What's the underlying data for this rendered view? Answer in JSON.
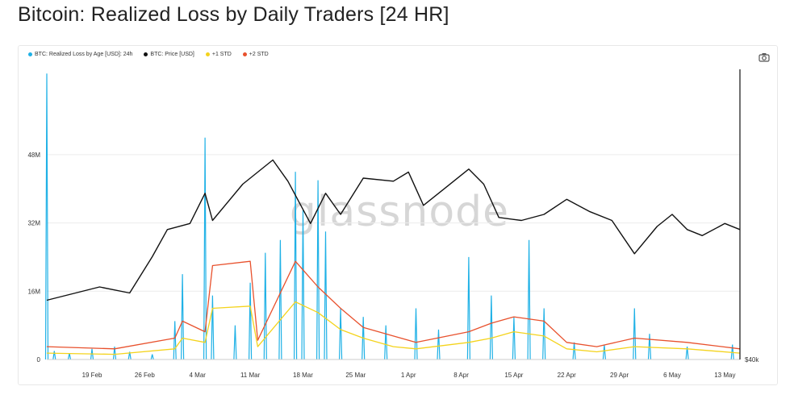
{
  "title": "Bitcoin: Realized Loss by Daily Traders [24 HR]",
  "watermark": "glassnode",
  "colors": {
    "loss": "#1fb1e6",
    "price": "#111111",
    "std1": "#f4d31c",
    "std2": "#e8512d"
  },
  "chart_data": {
    "type": "line",
    "title": "Bitcoin: Realized Loss by Daily Traders [24 HR]",
    "legend_position": "top-left",
    "x_tick_labels": [
      "19 Feb",
      "26 Feb",
      "4 Mar",
      "11 Mar",
      "18 Mar",
      "25 Mar",
      "1 Apr",
      "8 Apr",
      "15 Apr",
      "22 Apr",
      "29 Apr",
      "6 May",
      "13 May"
    ],
    "x_range": [
      "2024-02-13",
      "2024-05-15"
    ],
    "y_left_ticks": [
      {
        "value": 0,
        "label": "0"
      },
      {
        "value": 16000000,
        "label": "16M"
      },
      {
        "value": 32000000,
        "label": "32M"
      },
      {
        "value": 48000000,
        "label": "48M"
      }
    ],
    "y_left_range": [
      0,
      68000000
    ],
    "y_right_visible_label": "$40k",
    "y_right_range": [
      40000,
      88000
    ],
    "series": [
      {
        "name": "BTC: Realized Loss by Age [USD]: 24h",
        "axis": "left",
        "style": "spikes",
        "points": [
          [
            "2024-02-13",
            67000000
          ],
          [
            "2024-02-14",
            2000000
          ],
          [
            "2024-02-16",
            1500000
          ],
          [
            "2024-02-19",
            2500000
          ],
          [
            "2024-02-22",
            3000000
          ],
          [
            "2024-02-24",
            1800000
          ],
          [
            "2024-02-27",
            1200000
          ],
          [
            "2024-03-01",
            9000000
          ],
          [
            "2024-03-02",
            20000000
          ],
          [
            "2024-03-05",
            52000000
          ],
          [
            "2024-03-06",
            15000000
          ],
          [
            "2024-03-09",
            8000000
          ],
          [
            "2024-03-11",
            18000000
          ],
          [
            "2024-03-13",
            25000000
          ],
          [
            "2024-03-15",
            28000000
          ],
          [
            "2024-03-17",
            44000000
          ],
          [
            "2024-03-18",
            35000000
          ],
          [
            "2024-03-20",
            42000000
          ],
          [
            "2024-03-21",
            30000000
          ],
          [
            "2024-03-23",
            12000000
          ],
          [
            "2024-03-26",
            10000000
          ],
          [
            "2024-03-29",
            8000000
          ],
          [
            "2024-04-02",
            12000000
          ],
          [
            "2024-04-05",
            7000000
          ],
          [
            "2024-04-09",
            24000000
          ],
          [
            "2024-04-12",
            15000000
          ],
          [
            "2024-04-15",
            10000000
          ],
          [
            "2024-04-17",
            28000000
          ],
          [
            "2024-04-19",
            12000000
          ],
          [
            "2024-04-23",
            4000000
          ],
          [
            "2024-04-27",
            3500000
          ],
          [
            "2024-05-01",
            12000000
          ],
          [
            "2024-05-03",
            6000000
          ],
          [
            "2024-05-08",
            3000000
          ],
          [
            "2024-05-14",
            3500000
          ]
        ]
      },
      {
        "name": "BTC: Price [USD]",
        "axis": "right",
        "points": [
          [
            "2024-02-13",
            49800
          ],
          [
            "2024-02-20",
            52000
          ],
          [
            "2024-02-24",
            51000
          ],
          [
            "2024-02-27",
            57000
          ],
          [
            "2024-02-29",
            61500
          ],
          [
            "2024-03-03",
            62500
          ],
          [
            "2024-03-05",
            67500
          ],
          [
            "2024-03-06",
            63000
          ],
          [
            "2024-03-10",
            69000
          ],
          [
            "2024-03-14",
            73000
          ],
          [
            "2024-03-16",
            69500
          ],
          [
            "2024-03-19",
            62500
          ],
          [
            "2024-03-21",
            67500
          ],
          [
            "2024-03-23",
            64000
          ],
          [
            "2024-03-26",
            70000
          ],
          [
            "2024-03-30",
            69500
          ],
          [
            "2024-04-01",
            71000
          ],
          [
            "2024-04-03",
            65500
          ],
          [
            "2024-04-06",
            68500
          ],
          [
            "2024-04-09",
            71500
          ],
          [
            "2024-04-11",
            69000
          ],
          [
            "2024-04-13",
            63500
          ],
          [
            "2024-04-16",
            63000
          ],
          [
            "2024-04-19",
            64000
          ],
          [
            "2024-04-22",
            66500
          ],
          [
            "2024-04-25",
            64500
          ],
          [
            "2024-04-28",
            63000
          ],
          [
            "2024-05-01",
            57500
          ],
          [
            "2024-05-04",
            62000
          ],
          [
            "2024-05-06",
            64000
          ],
          [
            "2024-05-08",
            61500
          ],
          [
            "2024-05-10",
            60500
          ],
          [
            "2024-05-13",
            62500
          ],
          [
            "2024-05-15",
            61500
          ]
        ]
      },
      {
        "name": "+1 STD",
        "axis": "left",
        "points": [
          [
            "2024-02-13",
            1500000
          ],
          [
            "2024-02-22",
            1200000
          ],
          [
            "2024-03-01",
            2500000
          ],
          [
            "2024-03-02",
            5000000
          ],
          [
            "2024-03-05",
            4000000
          ],
          [
            "2024-03-06",
            12000000
          ],
          [
            "2024-03-11",
            12500000
          ],
          [
            "2024-03-12",
            3000000
          ],
          [
            "2024-03-17",
            13500000
          ],
          [
            "2024-03-20",
            11000000
          ],
          [
            "2024-03-23",
            7000000
          ],
          [
            "2024-03-26",
            5000000
          ],
          [
            "2024-03-30",
            3000000
          ],
          [
            "2024-04-02",
            2500000
          ],
          [
            "2024-04-09",
            4000000
          ],
          [
            "2024-04-12",
            5000000
          ],
          [
            "2024-04-15",
            6500000
          ],
          [
            "2024-04-19",
            5500000
          ],
          [
            "2024-04-22",
            2500000
          ],
          [
            "2024-04-26",
            1800000
          ],
          [
            "2024-05-01",
            3000000
          ],
          [
            "2024-05-08",
            2500000
          ],
          [
            "2024-05-15",
            1500000
          ]
        ]
      },
      {
        "name": "+2 STD",
        "axis": "left",
        "points": [
          [
            "2024-02-13",
            3000000
          ],
          [
            "2024-02-22",
            2500000
          ],
          [
            "2024-03-01",
            5000000
          ],
          [
            "2024-03-02",
            9000000
          ],
          [
            "2024-03-05",
            6500000
          ],
          [
            "2024-03-06",
            22000000
          ],
          [
            "2024-03-11",
            23000000
          ],
          [
            "2024-03-12",
            4500000
          ],
          [
            "2024-03-17",
            23000000
          ],
          [
            "2024-03-20",
            17000000
          ],
          [
            "2024-03-23",
            12000000
          ],
          [
            "2024-03-26",
            7500000
          ],
          [
            "2024-03-30",
            5500000
          ],
          [
            "2024-04-02",
            4000000
          ],
          [
            "2024-04-09",
            6500000
          ],
          [
            "2024-04-12",
            8500000
          ],
          [
            "2024-04-15",
            10000000
          ],
          [
            "2024-04-19",
            9000000
          ],
          [
            "2024-04-22",
            4000000
          ],
          [
            "2024-04-26",
            3000000
          ],
          [
            "2024-05-01",
            5000000
          ],
          [
            "2024-05-08",
            4000000
          ],
          [
            "2024-05-15",
            2500000
          ]
        ]
      }
    ]
  }
}
